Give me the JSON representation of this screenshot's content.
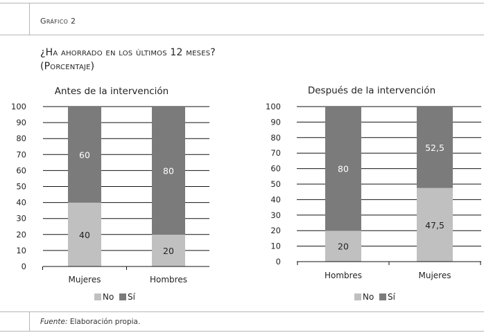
{
  "header": {
    "caption": "Gráfico 2",
    "title_line1": "¿Ha ahorrado en los últimos 12 meses?",
    "title_line2": "(Porcentaje)"
  },
  "footer": {
    "source_label": "Fuente:",
    "source_text": "Elaboración propia."
  },
  "colors": {
    "no": "#c0c0c0",
    "si": "#7b7b7b"
  },
  "chart_data": [
    {
      "type": "bar",
      "stacked": true,
      "title": "Antes de la intervención",
      "categories": [
        "Mujeres",
        "Hombres"
      ],
      "series": [
        {
          "name": "No",
          "values": [
            40,
            20
          ]
        },
        {
          "name": "Sí",
          "values": [
            60,
            80
          ]
        }
      ],
      "ylim": [
        0,
        100
      ],
      "yticks": [
        "0",
        "10",
        "20",
        "30",
        "40",
        "50",
        "60",
        "70",
        "80",
        "90",
        "100"
      ],
      "data_labels": [
        [
          "40",
          "20"
        ],
        [
          "60",
          "80"
        ]
      ],
      "grid": true,
      "legend": "bottom"
    },
    {
      "type": "bar",
      "stacked": true,
      "title": "Después de la intervención",
      "categories": [
        "Hombres",
        "Mujeres"
      ],
      "series": [
        {
          "name": "No",
          "values": [
            20,
            47.5
          ]
        },
        {
          "name": "Sí",
          "values": [
            80,
            52.5
          ]
        }
      ],
      "ylim": [
        0,
        100
      ],
      "yticks": [
        "0",
        "10",
        "20",
        "30",
        "40",
        "50",
        "60",
        "70",
        "80",
        "90",
        "100"
      ],
      "data_labels": [
        [
          "20",
          "47,5"
        ],
        [
          "80",
          "52,5"
        ]
      ],
      "grid": true,
      "legend": "bottom"
    }
  ]
}
